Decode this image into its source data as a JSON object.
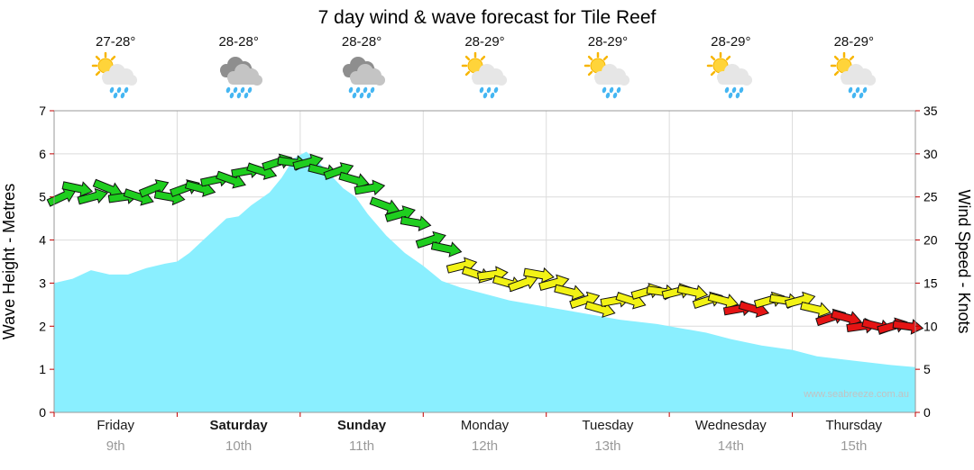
{
  "title": "7 day wind & wave forecast for Tile Reef",
  "watermark": "www.seabreeze.com.au",
  "axes": {
    "left_label": "Wave Height - Metres",
    "right_label": "Wind Speed - Knots",
    "wave_ticks": [
      0,
      1,
      2,
      3,
      4,
      5,
      6,
      7
    ],
    "wind_ticks": [
      0,
      5,
      10,
      15,
      20,
      25,
      30,
      35
    ]
  },
  "days": [
    {
      "name": "Friday",
      "date": "9th",
      "temp": "27-28°",
      "icon": "sun-cloud-rain",
      "bold": false
    },
    {
      "name": "Saturday",
      "date": "10th",
      "temp": "28-28°",
      "icon": "rain-clouds",
      "bold": true
    },
    {
      "name": "Sunday",
      "date": "11th",
      "temp": "28-28°",
      "icon": "rain-clouds",
      "bold": true
    },
    {
      "name": "Monday",
      "date": "12th",
      "temp": "28-29°",
      "icon": "sun-cloud-rain",
      "bold": false
    },
    {
      "name": "Tuesday",
      "date": "13th",
      "temp": "28-29°",
      "icon": "sun-cloud-rain",
      "bold": false
    },
    {
      "name": "Wednesday",
      "date": "14th",
      "temp": "28-29°",
      "icon": "sun-cloud-rain",
      "bold": false
    },
    {
      "name": "Thursday",
      "date": "15th",
      "temp": "28-29°",
      "icon": "sun-cloud-rain",
      "bold": false
    }
  ],
  "chart_data": {
    "type": "area+wind-arrows",
    "title": "7 day wind & wave forecast for Tile Reef",
    "x_axis": {
      "unit": "day",
      "categories": [
        "Friday 9th",
        "Saturday 10th",
        "Sunday 11th",
        "Monday 12th",
        "Tuesday 13th",
        "Wednesday 14th",
        "Thursday 15th"
      ]
    },
    "wave_height_m": {
      "name": "Wave Height - Metres",
      "ylim": [
        0,
        7
      ],
      "points": [
        [
          0,
          3.0
        ],
        [
          0.15,
          3.1
        ],
        [
          0.3,
          3.3
        ],
        [
          0.45,
          3.2
        ],
        [
          0.6,
          3.2
        ],
        [
          0.75,
          3.35
        ],
        [
          0.9,
          3.45
        ],
        [
          1.0,
          3.5
        ],
        [
          1.1,
          3.7
        ],
        [
          1.25,
          4.1
        ],
        [
          1.4,
          4.5
        ],
        [
          1.5,
          4.55
        ],
        [
          1.6,
          4.8
        ],
        [
          1.75,
          5.1
        ],
        [
          1.85,
          5.45
        ],
        [
          1.95,
          5.9
        ],
        [
          2.05,
          6.05
        ],
        [
          2.15,
          5.8
        ],
        [
          2.25,
          5.5
        ],
        [
          2.35,
          5.2
        ],
        [
          2.45,
          5.0
        ],
        [
          2.55,
          4.6
        ],
        [
          2.7,
          4.1
        ],
        [
          2.85,
          3.7
        ],
        [
          3.0,
          3.4
        ],
        [
          3.15,
          3.05
        ],
        [
          3.3,
          2.9
        ],
        [
          3.5,
          2.75
        ],
        [
          3.7,
          2.6
        ],
        [
          3.9,
          2.5
        ],
        [
          4.1,
          2.4
        ],
        [
          4.3,
          2.3
        ],
        [
          4.6,
          2.15
        ],
        [
          4.9,
          2.05
        ],
        [
          5.1,
          1.95
        ],
        [
          5.3,
          1.85
        ],
        [
          5.5,
          1.7
        ],
        [
          5.75,
          1.55
        ],
        [
          6.0,
          1.45
        ],
        [
          6.2,
          1.3
        ],
        [
          6.5,
          1.2
        ],
        [
          6.8,
          1.1
        ],
        [
          7.0,
          1.05
        ]
      ]
    },
    "wind_speed_kt": {
      "name": "Wind Speed - Knots",
      "ylim": [
        0,
        35
      ],
      "point_format": [
        "t_days",
        "knots",
        "color",
        "arrow_dir_deg"
      ],
      "color_legend": {
        "g": "green",
        "y": "yellow",
        "r": "red"
      },
      "points": [
        [
          0.0625,
          25,
          "g",
          -25
        ],
        [
          0.1875,
          26,
          "g",
          12
        ],
        [
          0.3125,
          25,
          "g",
          -15
        ],
        [
          0.4375,
          26,
          "g",
          22
        ],
        [
          0.5625,
          25,
          "g",
          -8
        ],
        [
          0.6875,
          25,
          "g",
          18
        ],
        [
          0.8125,
          26,
          "g",
          -22
        ],
        [
          0.9375,
          25,
          "g",
          10
        ],
        [
          1.0625,
          26,
          "g",
          -20
        ],
        [
          1.1875,
          26,
          "g",
          15
        ],
        [
          1.3125,
          27,
          "g",
          -12
        ],
        [
          1.4375,
          27,
          "g",
          20
        ],
        [
          1.5625,
          28,
          "g",
          -10
        ],
        [
          1.6875,
          28,
          "g",
          18
        ],
        [
          1.8125,
          29,
          "g",
          -18
        ],
        [
          1.9375,
          29,
          "g",
          8
        ],
        [
          2.0625,
          29,
          "g",
          -15
        ],
        [
          2.1875,
          28,
          "g",
          14
        ],
        [
          2.3125,
          28,
          "g",
          -20
        ],
        [
          2.4375,
          27,
          "g",
          16
        ],
        [
          2.5625,
          26,
          "g",
          -10
        ],
        [
          2.6875,
          24,
          "g",
          20
        ],
        [
          2.8125,
          23,
          "g",
          -16
        ],
        [
          2.9375,
          22,
          "g",
          10
        ],
        [
          3.0625,
          20,
          "g",
          -18
        ],
        [
          3.1875,
          19,
          "g",
          12
        ],
        [
          3.3125,
          17,
          "y",
          -14
        ],
        [
          3.4375,
          16,
          "y",
          18
        ],
        [
          3.5625,
          16,
          "y",
          -8
        ],
        [
          3.6875,
          15,
          "y",
          16
        ],
        [
          3.8125,
          15,
          "y",
          -20
        ],
        [
          3.9375,
          16,
          "y",
          10
        ],
        [
          4.0625,
          15,
          "y",
          -15
        ],
        [
          4.1875,
          14,
          "y",
          14
        ],
        [
          4.3125,
          13,
          "y",
          -18
        ],
        [
          4.4375,
          12,
          "y",
          16
        ],
        [
          4.5625,
          13,
          "y",
          -10
        ],
        [
          4.6875,
          13,
          "y",
          18
        ],
        [
          4.8125,
          14,
          "y",
          -16
        ],
        [
          4.9375,
          14,
          "y",
          8
        ],
        [
          5.0625,
          14,
          "y",
          -14
        ],
        [
          5.1875,
          14,
          "y",
          12
        ],
        [
          5.3125,
          13,
          "y",
          -18
        ],
        [
          5.4375,
          13,
          "y",
          15
        ],
        [
          5.5625,
          12,
          "r",
          -10
        ],
        [
          5.6875,
          12,
          "r",
          16
        ],
        [
          5.8125,
          13,
          "y",
          -16
        ],
        [
          5.9375,
          13,
          "y",
          9
        ],
        [
          6.0625,
          13,
          "y",
          -15
        ],
        [
          6.1875,
          12,
          "y",
          13
        ],
        [
          6.3125,
          11,
          "r",
          -18
        ],
        [
          6.4375,
          11,
          "r",
          15
        ],
        [
          6.5625,
          10,
          "r",
          -8
        ],
        [
          6.6875,
          10,
          "r",
          14
        ],
        [
          6.8125,
          10,
          "r",
          -16
        ],
        [
          6.9375,
          10,
          "r",
          8
        ]
      ]
    },
    "colors": {
      "wave_fill": "#8AEFFF",
      "g": "#1FCE1F",
      "y": "#F2F215",
      "r": "#E51414",
      "grid": "#DCDCDC",
      "tick": "#C00000",
      "border": "#9A9A9A"
    }
  }
}
